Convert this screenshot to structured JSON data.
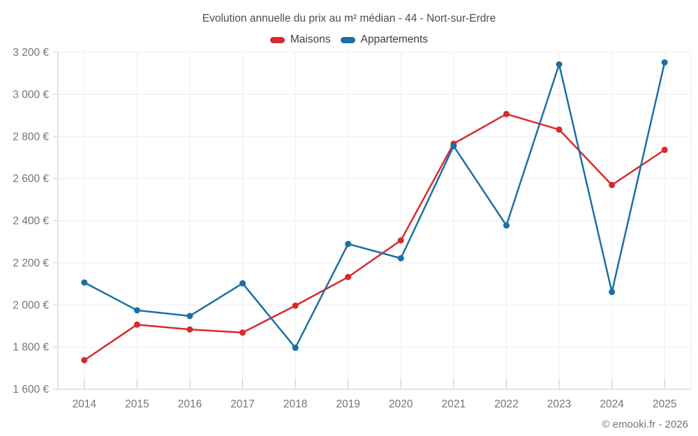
{
  "chart_data": {
    "type": "line",
    "title": "Evolution annuelle du prix au m² médian - 44 - Nort-sur-Erdre",
    "x": [
      2014,
      2015,
      2016,
      2017,
      2018,
      2019,
      2020,
      2021,
      2022,
      2023,
      2024,
      2025
    ],
    "series": [
      {
        "name": "Maisons",
        "color": "#d62b2b",
        "values": [
          1738,
          1907,
          1884,
          1869,
          1997,
          2133,
          2307,
          2766,
          2907,
          2833,
          2570,
          2737
        ]
      },
      {
        "name": "Appartements",
        "color": "#1c6fa5",
        "values": [
          2107,
          1975,
          1948,
          2103,
          1797,
          2290,
          2222,
          2755,
          2378,
          3143,
          2062,
          3152
        ]
      }
    ],
    "ylim": [
      1600,
      3200
    ],
    "ytick_step": 200,
    "y_unit": "€",
    "grid": true,
    "legend_position": "top",
    "colors": {
      "grid_line": "#ededed",
      "axis_line": "#c9c9c9",
      "tick_label": "#757575"
    }
  },
  "footer": {
    "credit": "© emooki.fr - 2026"
  }
}
